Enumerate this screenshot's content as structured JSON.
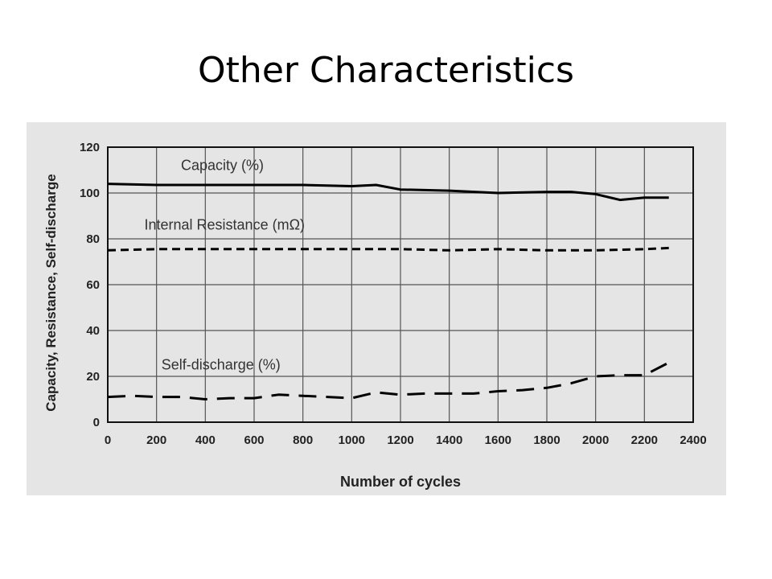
{
  "slide": {
    "title": "Other Characteristics"
  },
  "chart_data": {
    "type": "line",
    "title": "",
    "xlabel": "Number of cycles",
    "ylabel": "Capacity, Resistance, Self-discharge",
    "xlim": [
      0,
      2400
    ],
    "ylim": [
      0,
      120
    ],
    "x_ticks": [
      0,
      200,
      400,
      600,
      800,
      1000,
      1200,
      1400,
      1600,
      1800,
      2000,
      2200,
      2400
    ],
    "y_ticks": [
      0,
      20,
      40,
      60,
      80,
      100,
      120
    ],
    "grid": true,
    "background": "#e5e5e5",
    "series": [
      {
        "name": "Capacity (%)",
        "label_at": [
          300,
          110
        ],
        "style": "solid",
        "color": "#000000",
        "x": [
          0,
          200,
          400,
          600,
          800,
          1000,
          1100,
          1200,
          1400,
          1600,
          1800,
          1900,
          2000,
          2100,
          2200,
          2300
        ],
        "y": [
          104,
          103.5,
          103.5,
          103.5,
          103.5,
          103,
          103.5,
          101.5,
          101,
          100,
          100.5,
          100.5,
          99.5,
          97,
          98,
          98
        ]
      },
      {
        "name": "Internal Resistance (mΩ)",
        "label_at": [
          150,
          84
        ],
        "style": "dashed",
        "color": "#000000",
        "x": [
          0,
          200,
          400,
          600,
          800,
          1000,
          1200,
          1400,
          1600,
          1800,
          2000,
          2200,
          2300
        ],
        "y": [
          75,
          75.5,
          75.5,
          75.5,
          75.5,
          75.5,
          75.5,
          75,
          75.5,
          75,
          75,
          75.5,
          76
        ]
      },
      {
        "name": "Self-discharge (%)",
        "label_at": [
          220,
          23
        ],
        "style": "longdash",
        "color": "#000000",
        "x": [
          0,
          100,
          200,
          300,
          400,
          500,
          600,
          700,
          800,
          900,
          1000,
          1100,
          1200,
          1300,
          1400,
          1500,
          1600,
          1700,
          1800,
          1900,
          2000,
          2100,
          2200,
          2300
        ],
        "y": [
          11,
          11.5,
          11,
          11,
          10,
          10.5,
          10.5,
          12,
          11.5,
          11,
          10.5,
          13,
          12,
          12.5,
          12.5,
          12.5,
          13.5,
          14,
          15,
          17,
          20,
          20.5,
          20.5,
          26
        ]
      }
    ]
  }
}
